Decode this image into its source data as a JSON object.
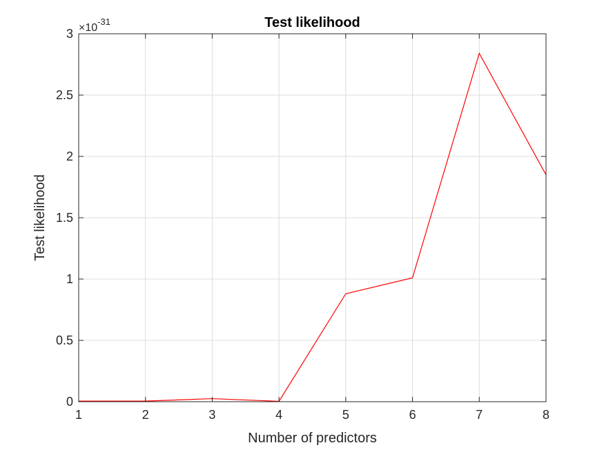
{
  "chart_data": {
    "type": "line",
    "title": "Test likelihood",
    "xlabel": "Number of predictors",
    "ylabel": "Test likelihood",
    "y_exponent_base": "×10",
    "y_exponent_power": "-31",
    "xlim": [
      1,
      8
    ],
    "ylim": [
      0,
      3
    ],
    "xticks": [
      1,
      2,
      3,
      4,
      5,
      6,
      7,
      8
    ],
    "yticks": [
      0,
      0.5,
      1,
      1.5,
      2,
      2.5,
      3
    ],
    "grid": true,
    "series": [
      {
        "color": "#ff0000",
        "x": [
          1,
          2,
          3,
          4,
          5,
          6,
          7,
          8
        ],
        "y": [
          0.005,
          0.005,
          0.025,
          0.003,
          0.88,
          1.01,
          2.84,
          1.85
        ]
      }
    ]
  }
}
